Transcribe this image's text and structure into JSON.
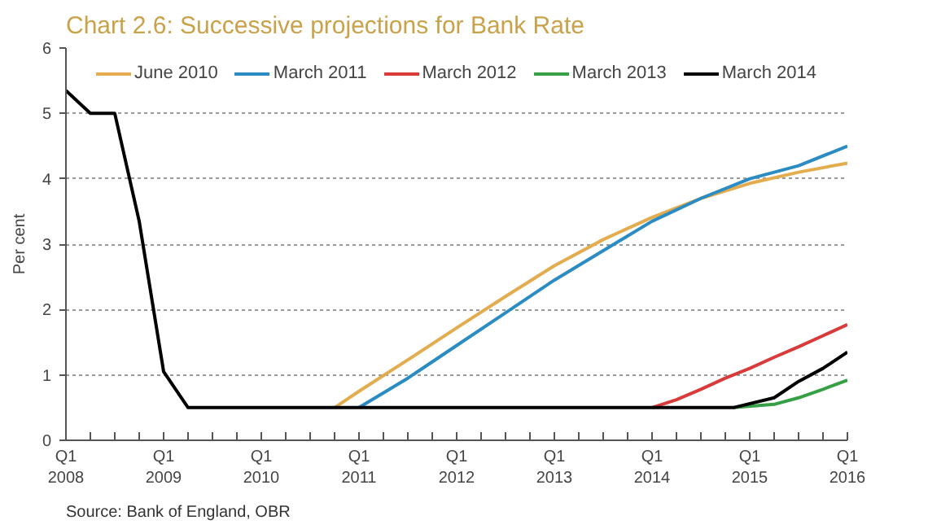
{
  "chart_data": {
    "type": "line",
    "title": "Chart 2.6: Successive projections for Bank Rate",
    "ylabel": "Per cent",
    "annotations": [
      "Source: Bank of England, OBR"
    ],
    "xlim": [
      "2008-01",
      "2016-01"
    ],
    "ylim": [
      0,
      6
    ],
    "yticks": [
      0,
      1,
      2,
      3,
      4,
      5,
      6
    ],
    "xticks": [
      {
        "value": "2008-01",
        "label": "Q1\n2008"
      },
      {
        "value": "2008-04",
        "label": null
      },
      {
        "value": "2008-07",
        "label": null
      },
      {
        "value": "2008-10",
        "label": null
      },
      {
        "value": "2009-01",
        "label": "Q1\n2009"
      },
      {
        "value": "2009-04",
        "label": null
      },
      {
        "value": "2009-07",
        "label": null
      },
      {
        "value": "2009-10",
        "label": null
      },
      {
        "value": "2010-01",
        "label": "Q1\n2010"
      },
      {
        "value": "2010-04",
        "label": null
      },
      {
        "value": "2010-07",
        "label": null
      },
      {
        "value": "2010-10",
        "label": null
      },
      {
        "value": "2011-01",
        "label": "Q1\n2011"
      },
      {
        "value": "2011-04",
        "label": null
      },
      {
        "value": "2011-07",
        "label": null
      },
      {
        "value": "2011-10",
        "label": null
      },
      {
        "value": "2012-01",
        "label": "Q1\n2012"
      },
      {
        "value": "2012-04",
        "label": null
      },
      {
        "value": "2012-07",
        "label": null
      },
      {
        "value": "2012-10",
        "label": null
      },
      {
        "value": "2013-01",
        "label": "Q1\n2013"
      },
      {
        "value": "2013-04",
        "label": null
      },
      {
        "value": "2013-07",
        "label": null
      },
      {
        "value": "2013-10",
        "label": null
      },
      {
        "value": "2014-01",
        "label": "Q1\n2014"
      },
      {
        "value": "2014-04",
        "label": null
      },
      {
        "value": "2014-07",
        "label": null
      },
      {
        "value": "2014-10",
        "label": null
      },
      {
        "value": "2015-01",
        "label": "Q1\n2015"
      },
      {
        "value": "2015-04",
        "label": null
      },
      {
        "value": "2015-07",
        "label": null
      },
      {
        "value": "2015-10",
        "label": null
      },
      {
        "value": "2016-01",
        "label": "Q1\n2016"
      }
    ],
    "grid": "y",
    "legend": "top",
    "line_style": "solid",
    "marker": "none",
    "series": [
      {
        "name": "June 2010",
        "color": "#e3ad4f",
        "x": [
          "2010-10",
          "2011-01",
          "2011-07",
          "2012-01",
          "2012-07",
          "2013-01",
          "2013-07",
          "2014-01",
          "2014-07",
          "2015-01",
          "2015-07",
          "2016-01"
        ],
        "values": [
          0.5,
          0.75,
          1.23,
          1.72,
          2.2,
          2.67,
          3.07,
          3.41,
          3.7,
          3.93,
          4.1,
          4.24
        ]
      },
      {
        "name": "March 2011",
        "color": "#2b8cc4",
        "x": [
          "2011-01",
          "2011-07",
          "2012-01",
          "2012-07",
          "2013-01",
          "2013-07",
          "2014-01",
          "2014-07",
          "2015-01",
          "2015-07",
          "2016-01"
        ],
        "values": [
          0.5,
          0.95,
          1.45,
          1.95,
          2.45,
          2.9,
          3.35,
          3.7,
          4.0,
          4.2,
          4.5
        ]
      },
      {
        "name": "March 2012",
        "color": "#d93a3a",
        "x": [
          "2014-01",
          "2014-04",
          "2014-07",
          "2014-10",
          "2015-01",
          "2015-04",
          "2015-07",
          "2015-10",
          "2016-01"
        ],
        "values": [
          0.5,
          0.62,
          0.78,
          0.95,
          1.1,
          1.27,
          1.43,
          1.6,
          1.77
        ]
      },
      {
        "name": "March 2013",
        "color": "#35a044",
        "x": [
          "2014-11",
          "2015-04",
          "2015-07",
          "2015-10",
          "2016-01"
        ],
        "values": [
          0.5,
          0.55,
          0.65,
          0.78,
          0.92
        ]
      },
      {
        "name": "March 2014",
        "color": "#000000",
        "x": [
          "2008-01",
          "2008-04",
          "2008-07",
          "2008-10",
          "2009-01",
          "2009-04",
          "2014-11",
          "2015-04",
          "2015-07",
          "2015-10",
          "2016-01"
        ],
        "values": [
          5.35,
          5.0,
          5.0,
          3.35,
          1.05,
          0.5,
          0.5,
          0.65,
          0.9,
          1.1,
          1.35
        ]
      }
    ]
  }
}
